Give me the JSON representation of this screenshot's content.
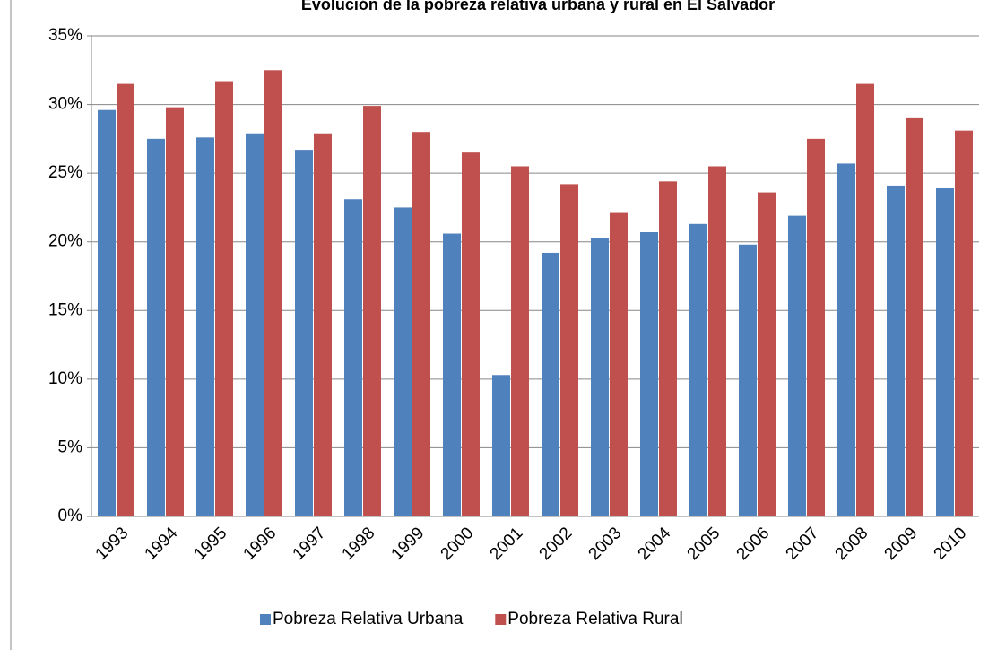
{
  "chart_data": {
    "type": "bar",
    "title": "Evolución de la pobreza relativa urbana y rural en El Salvador",
    "categories": [
      "1993",
      "1994",
      "1995",
      "1996",
      "1997",
      "1998",
      "1999",
      "2000",
      "2001",
      "2002",
      "2003",
      "2004",
      "2005",
      "2006",
      "2007",
      "2008",
      "2009",
      "2010"
    ],
    "series": [
      {
        "name": "Pobreza Relativa Urbana",
        "color": "#4f81bd",
        "values": [
          29.6,
          27.5,
          27.6,
          27.9,
          26.7,
          23.1,
          22.5,
          20.6,
          10.3,
          19.2,
          20.3,
          20.7,
          21.3,
          19.8,
          21.9,
          25.7,
          24.1,
          23.9
        ]
      },
      {
        "name": "Pobreza Relativa Rural",
        "color": "#c0504d",
        "values": [
          31.5,
          29.8,
          31.7,
          32.5,
          27.9,
          29.9,
          28.0,
          26.5,
          25.5,
          24.2,
          22.1,
          24.4,
          25.5,
          23.6,
          27.5,
          31.5,
          29.0,
          28.1
        ]
      }
    ],
    "ylim": [
      0,
      35
    ],
    "yticks": [
      {
        "value": 0,
        "label": "0%"
      },
      {
        "value": 5,
        "label": "5%"
      },
      {
        "value": 10,
        "label": "10%"
      },
      {
        "value": 15,
        "label": "15%"
      },
      {
        "value": 20,
        "label": "20%"
      },
      {
        "value": 25,
        "label": "25%"
      },
      {
        "value": 30,
        "label": "30%"
      },
      {
        "value": 35,
        "label": "35%"
      }
    ],
    "grid": true,
    "legend": "bottom"
  }
}
